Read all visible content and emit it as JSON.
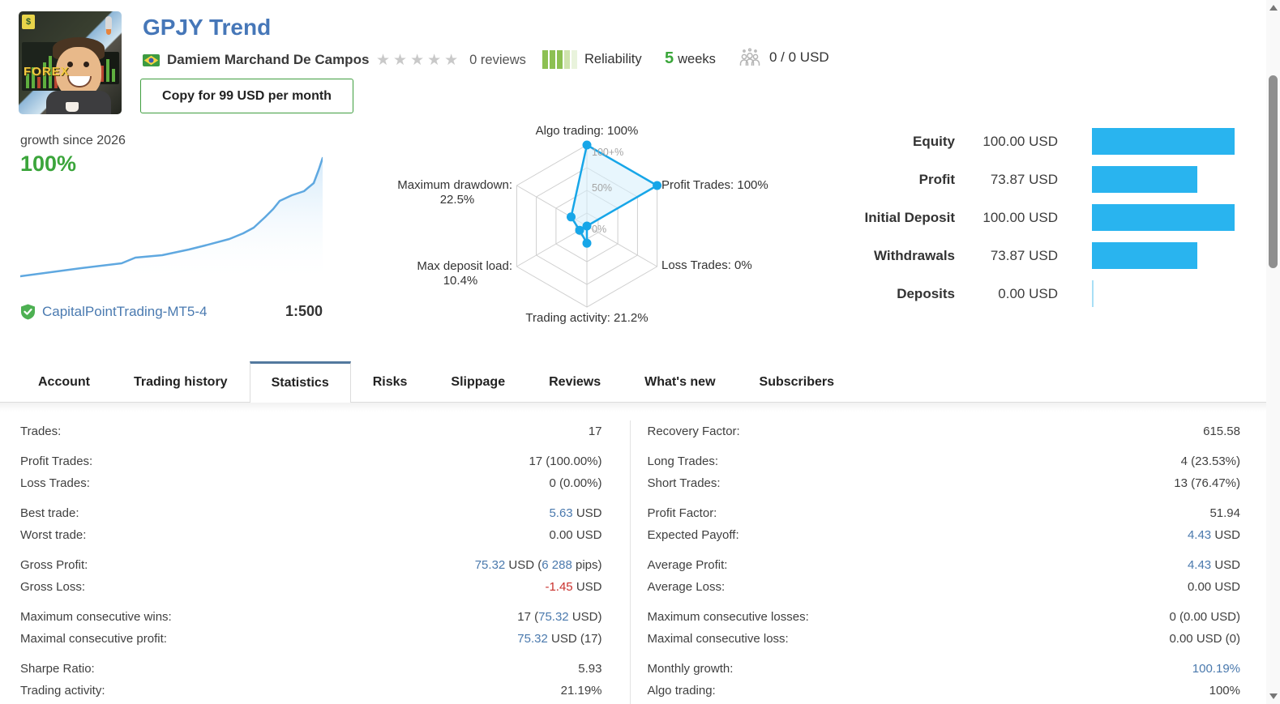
{
  "header": {
    "title": "GPJY Trend",
    "author": "Damiem Marchand De Campos",
    "author_flag": "brazil",
    "rating_stars": 0,
    "reviews": "0 reviews",
    "reliability_label": "Reliability",
    "reliability_segments": [
      "#8dc052",
      "#8dc052",
      "#8dc052",
      "#cfe3ad",
      "#e9f3dc"
    ],
    "weeks_value": "5",
    "weeks_label": "weeks",
    "subscribers": "0 / 0 USD",
    "copy_button": "Copy for 99 USD per month",
    "avatar_text": "FOREX",
    "avatar_note": "$"
  },
  "growth": {
    "caption": "growth since 2026",
    "value": "100%",
    "account": "CapitalPointTrading-MT5-4",
    "leverage": "1:500"
  },
  "radar": {
    "rings": [
      "0%",
      "50%",
      "100+%"
    ],
    "labels": [
      {
        "line1": "Algo trading: 100%",
        "line2": ""
      },
      {
        "line1": "Profit Trades: 100%",
        "line2": ""
      },
      {
        "line1": "Loss Trades: 0%",
        "line2": ""
      },
      {
        "line1": "Trading activity: 21.2%",
        "line2": ""
      },
      {
        "line1": "Max deposit load:",
        "line2": "10.4%"
      },
      {
        "line1": "Maximum drawdown:",
        "line2": "22.5%"
      }
    ]
  },
  "balance": {
    "rows": [
      {
        "label": "Equity",
        "value": "100.00 USD",
        "pct": 100
      },
      {
        "label": "Profit",
        "value": "73.87 USD",
        "pct": 73.87
      },
      {
        "label": "Initial Deposit",
        "value": "100.00 USD",
        "pct": 100
      },
      {
        "label": "Withdrawals",
        "value": "73.87 USD",
        "pct": 73.87
      },
      {
        "label": "Deposits",
        "value": "0.00 USD",
        "pct": 0
      }
    ]
  },
  "tabs": [
    {
      "label": "Account",
      "active": false
    },
    {
      "label": "Trading history",
      "active": false
    },
    {
      "label": "Statistics",
      "active": true
    },
    {
      "label": "Risks",
      "active": false
    },
    {
      "label": "Slippage",
      "active": false
    },
    {
      "label": "Reviews",
      "active": false
    },
    {
      "label": "What's new",
      "active": false
    },
    {
      "label": "Subscribers",
      "active": false
    }
  ],
  "stats": {
    "left": [
      [
        {
          "label": "Trades:",
          "value": [
            [
              "17",
              ""
            ]
          ]
        }
      ],
      [
        {
          "label": "Profit Trades:",
          "value": [
            [
              "17 (100.00%)",
              ""
            ]
          ]
        },
        {
          "label": "Loss Trades:",
          "value": [
            [
              "0 (0.00%)",
              ""
            ]
          ]
        }
      ],
      [
        {
          "label": "Best trade:",
          "value": [
            [
              "5.63",
              "b"
            ],
            [
              " USD",
              ""
            ]
          ]
        },
        {
          "label": "Worst trade:",
          "value": [
            [
              "0.00 USD",
              ""
            ]
          ]
        }
      ],
      [
        {
          "label": "Gross Profit:",
          "value": [
            [
              "75.32",
              "b"
            ],
            [
              " USD (",
              ""
            ],
            [
              "6 288",
              "b"
            ],
            [
              " pips)",
              ""
            ]
          ]
        },
        {
          "label": "Gross Loss:",
          "value": [
            [
              "-1.45",
              "r"
            ],
            [
              " USD",
              ""
            ]
          ]
        }
      ],
      [
        {
          "label": "Maximum consecutive wins:",
          "value": [
            [
              "17 (",
              ""
            ],
            [
              "75.32",
              "b"
            ],
            [
              " USD)",
              ""
            ]
          ]
        },
        {
          "label": "Maximal consecutive profit:",
          "value": [
            [
              "75.32",
              "b"
            ],
            [
              " USD (17)",
              ""
            ]
          ]
        }
      ],
      [
        {
          "label": "Sharpe Ratio:",
          "value": [
            [
              "5.93",
              ""
            ]
          ]
        },
        {
          "label": "Trading activity:",
          "value": [
            [
              "21.19%",
              ""
            ]
          ]
        }
      ]
    ],
    "right": [
      [
        {
          "label": "Recovery Factor:",
          "value": [
            [
              "615.58",
              ""
            ]
          ]
        }
      ],
      [
        {
          "label": "Long Trades:",
          "value": [
            [
              "4 (23.53%)",
              ""
            ]
          ]
        },
        {
          "label": "Short Trades:",
          "value": [
            [
              "13 (76.47%)",
              ""
            ]
          ]
        }
      ],
      [
        {
          "label": "Profit Factor:",
          "value": [
            [
              "51.94",
              ""
            ]
          ]
        },
        {
          "label": "Expected Payoff:",
          "value": [
            [
              "4.43",
              "b"
            ],
            [
              " USD",
              ""
            ]
          ]
        }
      ],
      [
        {
          "label": "Average Profit:",
          "value": [
            [
              "4.43",
              "b"
            ],
            [
              " USD",
              ""
            ]
          ]
        },
        {
          "label": "Average Loss:",
          "value": [
            [
              "0.00 USD",
              ""
            ]
          ]
        }
      ],
      [
        {
          "label": "Maximum consecutive losses:",
          "value": [
            [
              "0 (0.00 USD)",
              ""
            ]
          ]
        },
        {
          "label": "Maximal consecutive loss:",
          "value": [
            [
              "0.00 USD (0)",
              ""
            ]
          ]
        }
      ],
      [
        {
          "label": "Monthly growth:",
          "value": [
            [
              "100.19%",
              "b"
            ]
          ]
        },
        {
          "label": "Algo trading:",
          "value": [
            [
              "100%",
              ""
            ]
          ]
        }
      ]
    ]
  },
  "colors": {
    "title_blue": "#4677b8",
    "value_blue": "#4a79ad",
    "value_red": "#c9302c",
    "growth_green": "#3ba53b",
    "weeks_green": "#3aa63a",
    "bar_cyan": "#29b4ef",
    "radar_blue": "#17a6e8",
    "tab_accent": "#53799e"
  },
  "chart_data": [
    {
      "type": "line",
      "title": "growth since 2026",
      "ylabel": "growth %",
      "ylim": [
        0,
        100
      ],
      "x_pct": [
        0,
        20,
        34,
        38,
        47,
        56,
        61,
        69,
        74,
        77,
        81,
        84,
        86,
        90,
        94,
        97,
        99,
        100
      ],
      "values": [
        0,
        6.8,
        10.9,
        12.5,
        17.7,
        22.4,
        25.9,
        31.3,
        36.1,
        40.8,
        49.7,
        56.5,
        63.3,
        68.0,
        71.4,
        78.2,
        89.1,
        100
      ],
      "final_value_label": "100%"
    },
    {
      "type": "radar",
      "categories": [
        "Algo trading",
        "Profit Trades",
        "Loss Trades",
        "Trading activity",
        "Max deposit load",
        "Maximum drawdown"
      ],
      "values": [
        100,
        100,
        0,
        21.2,
        10.4,
        22.5
      ],
      "ring_labels": [
        "0%",
        "50%",
        "100+%"
      ],
      "rmax": 100
    },
    {
      "type": "bar",
      "orientation": "horizontal",
      "categories": [
        "Equity",
        "Profit",
        "Initial Deposit",
        "Withdrawals",
        "Deposits"
      ],
      "values": [
        100,
        73.87,
        100,
        73.87,
        0
      ],
      "unit": "USD"
    }
  ]
}
